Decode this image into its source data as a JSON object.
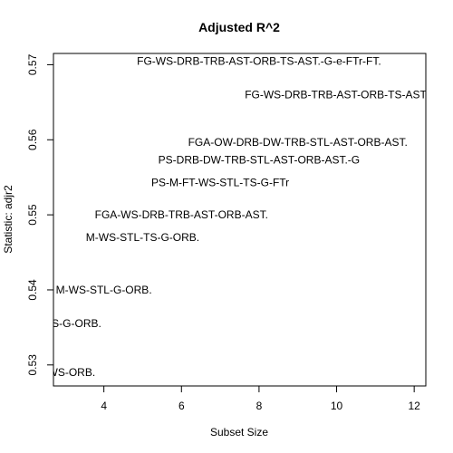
{
  "chart_data": {
    "type": "scatter",
    "title": "Adjusted R^2",
    "xlabel": "Subset Size",
    "ylabel": "Statistic: adjr2",
    "xlim": [
      2.7,
      12.3
    ],
    "ylim": [
      0.5272,
      0.5715
    ],
    "xticks": [
      4,
      6,
      8,
      10,
      12
    ],
    "yticks": [
      0.53,
      0.54,
      0.55,
      0.56,
      0.57
    ],
    "grid": false,
    "points": [
      {
        "x": 3,
        "y": 0.529,
        "label": "M-WS-ORB."
      },
      {
        "x": 3,
        "y": 0.5355,
        "label": "M-WS-G-ORB."
      },
      {
        "x": 4,
        "y": 0.54,
        "label": "M-WS-STL-G-ORB."
      },
      {
        "x": 5,
        "y": 0.547,
        "label": "M-WS-STL-TS-G-ORB."
      },
      {
        "x": 6,
        "y": 0.55,
        "label": "FGA-WS-DRB-TRB-AST-ORB-AST."
      },
      {
        "x": 7,
        "y": 0.5543,
        "label": "PS-M-FT-WS-STL-TS-G-FTr"
      },
      {
        "x": 8,
        "y": 0.5573,
        "label": "PS-DRB-DW-TRB-STL-AST-ORB-AST.-G"
      },
      {
        "x": 9,
        "y": 0.5597,
        "label": "FGA-OW-DRB-DW-TRB-STL-AST-ORB-AST."
      },
      {
        "x": 10,
        "y": 0.566,
        "label": "FG-WS-DRB-TRB-AST-ORB-TS-AST."
      },
      {
        "x": 8,
        "y": 0.5705,
        "label": "FG-WS-DRB-TRB-AST-ORB-TS-AST.-G-e-FTr-FT."
      }
    ]
  }
}
